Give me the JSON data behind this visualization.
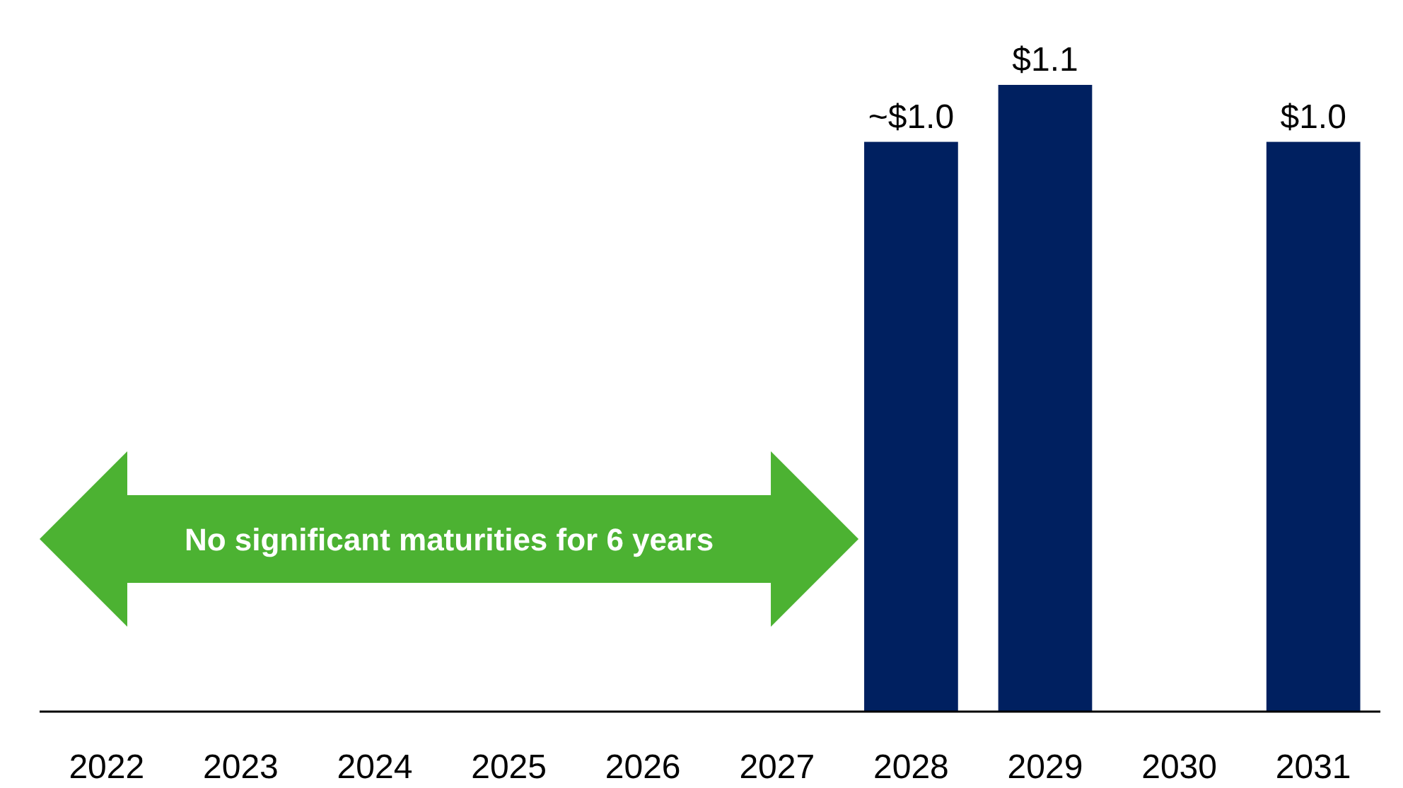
{
  "chart_data": {
    "type": "bar",
    "categories": [
      "2022",
      "2023",
      "2024",
      "2025",
      "2026",
      "2027",
      "2028",
      "2029",
      "2030",
      "2031"
    ],
    "values": [
      null,
      null,
      null,
      null,
      null,
      null,
      1.0,
      1.1,
      null,
      1.0
    ],
    "value_labels": [
      null,
      null,
      null,
      null,
      null,
      null,
      "~$1.0",
      "$1.1",
      null,
      "$1.0"
    ],
    "color": "#002060",
    "annotations": [
      "No significant maturities for 6 years"
    ]
  }
}
